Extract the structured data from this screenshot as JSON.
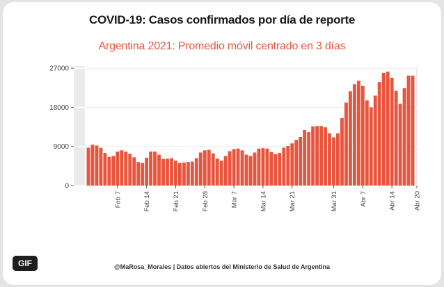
{
  "title": "COVID-19: Casos confirmados por día de reporte",
  "subtitle": "Argentina 2021: Promedio móvil centrado en 3 días",
  "caption": "@MaRosa_Morales | Datos abiertos del Ministerio de Salud de Argentina",
  "badge": "GIF",
  "colors": {
    "bar": "#e8553e",
    "subtitle": "#e8553e",
    "panel": "#ebebeb"
  },
  "chart_data": {
    "type": "bar",
    "ylim": [
      0,
      27500
    ],
    "yticks": [
      0,
      9000,
      18000,
      27000
    ],
    "ytick_labels": [
      "0",
      "9000",
      "18000",
      "27000"
    ],
    "xtick_labels": [
      {
        "label": "Feb 7",
        "index": 7
      },
      {
        "label": "Feb 14",
        "index": 14
      },
      {
        "label": "Feb 21",
        "index": 21
      },
      {
        "label": "Feb 28",
        "index": 28
      },
      {
        "label": "Mar 7",
        "index": 35
      },
      {
        "label": "Mar 14",
        "index": 42
      },
      {
        "label": "Mar 21",
        "index": 49
      },
      {
        "label": "Mar 31",
        "index": 59
      },
      {
        "label": "Abr 7",
        "index": 66
      },
      {
        "label": "Abr 14",
        "index": 73
      },
      {
        "label": "Abr 20",
        "index": 79
      }
    ],
    "values": [
      8700,
      9400,
      9200,
      8700,
      7500,
      6600,
      6800,
      7800,
      8100,
      7800,
      7300,
      6500,
      5400,
      5200,
      6400,
      7800,
      7800,
      7100,
      6100,
      6200,
      6300,
      5700,
      5200,
      5300,
      5400,
      5500,
      6300,
      7600,
      8100,
      8200,
      7400,
      6200,
      5700,
      6800,
      7900,
      8400,
      8500,
      8100,
      7100,
      6800,
      7600,
      8500,
      8600,
      8500,
      7700,
      7200,
      7500,
      8700,
      9100,
      9700,
      10500,
      11200,
      12800,
      12300,
      13600,
      13700,
      13700,
      13400,
      12000,
      11100,
      12000,
      15500,
      19100,
      21700,
      23300,
      24100,
      22900,
      19600,
      18000,
      20700,
      23800,
      25900,
      26200,
      24800,
      21800,
      18800,
      22400,
      25300,
      25300
    ]
  }
}
